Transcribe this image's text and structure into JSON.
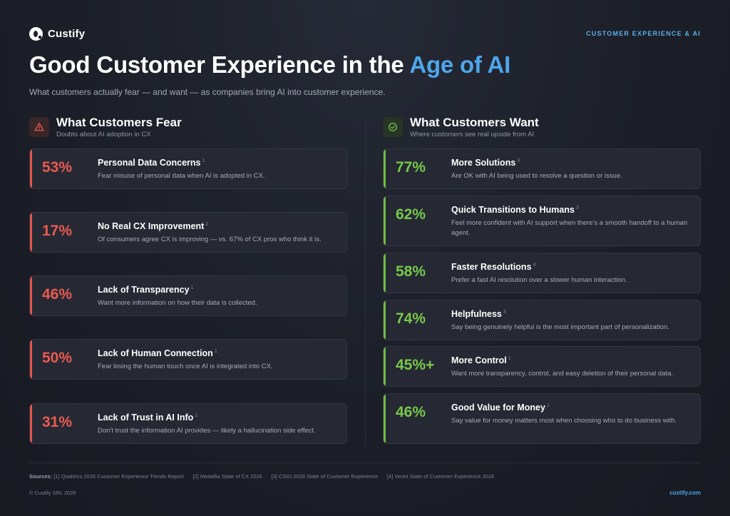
{
  "brand": {
    "name": "Custify"
  },
  "category": "CUSTOMER EXPERIENCE & AI",
  "title": {
    "main": "Good Customer Experience in the ",
    "accent": "Age of AI"
  },
  "subtitle": "What customers actually fear — and want — as companies bring AI into customer experience.",
  "fears": {
    "icon": "warning-icon",
    "title": "What Customers Fear",
    "subtitle": "Doubts about AI adoption in CX",
    "accent_color": "#ea5a50",
    "items": [
      {
        "pct": "53%",
        "title": "Personal Data Concerns",
        "ref": "1",
        "desc": "Fear misuse of personal data when AI is adopted in CX."
      },
      {
        "pct": "17%",
        "title": "No Real CX Improvement",
        "ref": "2",
        "desc": "Of consumers agree CX is improving — vs. 67% of CX pros who think it is."
      },
      {
        "pct": "46%",
        "title": "Lack of Transparency",
        "ref": "1",
        "desc": "Want more information on how their data is collected."
      },
      {
        "pct": "50%",
        "title": "Lack of Human Connection",
        "ref": "1",
        "desc": "Fear losing the human touch once AI is integrated into CX."
      },
      {
        "pct": "31%",
        "title": "Lack of Trust in AI Info",
        "ref": "1",
        "desc": "Don't trust the information AI provides — likely a hallucination side effect."
      }
    ]
  },
  "wants": {
    "icon": "check-circle-icon",
    "title": "What Customers Want",
    "subtitle": "Where customers see real upside from AI",
    "accent_color": "#78c84a",
    "items": [
      {
        "pct": "77%",
        "title": "More Solutions",
        "ref": "3",
        "desc": "Are OK with AI being used to resolve a question or issue."
      },
      {
        "pct": "62%",
        "title": "Quick Transitions to Humans",
        "ref": "3",
        "desc": "Feel more confident with AI support when there's a smooth handoff to a human agent."
      },
      {
        "pct": "58%",
        "title": "Faster Resolutions",
        "ref": "4",
        "desc": "Prefer a fast AI resolution over a slower human interaction."
      },
      {
        "pct": "74%",
        "title": "Helpfulness",
        "ref": "3",
        "desc": "Say being genuinely helpful is the most important part of personalization."
      },
      {
        "pct": "45%+",
        "title": "More Control",
        "ref": "1",
        "desc": "Want more transparency, control, and easy deletion of their personal data."
      },
      {
        "pct": "46%",
        "title": "Good Value for Money",
        "ref": "1",
        "desc": "Say value for money matters most when choosing who to do business with."
      }
    ]
  },
  "sources": {
    "label": "Sources:",
    "items": [
      "[1] Qualtrics 2026 Customer Experience Trends Report",
      "[2] Medallia State of CX 2026",
      "[3] CSGI 2026 State of Customer Experience",
      "[4] Verint State of Customer Experience 2026"
    ]
  },
  "footer": {
    "copyright": "© Custify SRL 2026",
    "site": "custify.com"
  }
}
